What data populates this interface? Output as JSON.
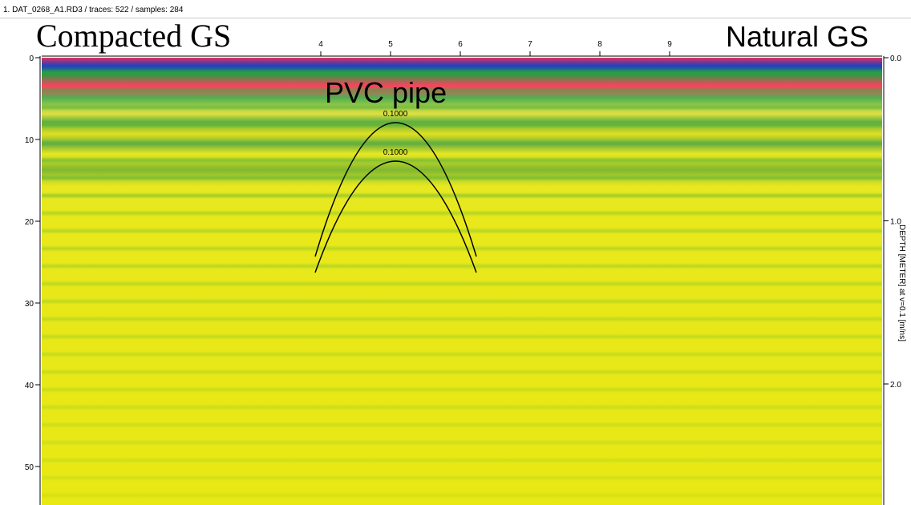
{
  "window": {
    "title": "1. DAT_0268_A1.RD3 / traces: 522 / samples: 284"
  },
  "top_axis": {
    "ticks": [
      "4",
      "5",
      "6",
      "7",
      "8",
      "9"
    ]
  },
  "left_axis": {
    "ticks": [
      "0",
      "10",
      "20",
      "30",
      "40",
      "50"
    ]
  },
  "right_axis": {
    "ticks": [
      "0.0",
      "1.0",
      "2.0"
    ],
    "label": "DEPTH [METER] at v=0.1 [m/ns]"
  },
  "annotations": {
    "left": "Compacted GS",
    "right": "Natural GS",
    "target": "PVC pipe"
  },
  "hyperbolas": [
    {
      "label": "0.1000"
    },
    {
      "label": "0.1000"
    }
  ]
}
